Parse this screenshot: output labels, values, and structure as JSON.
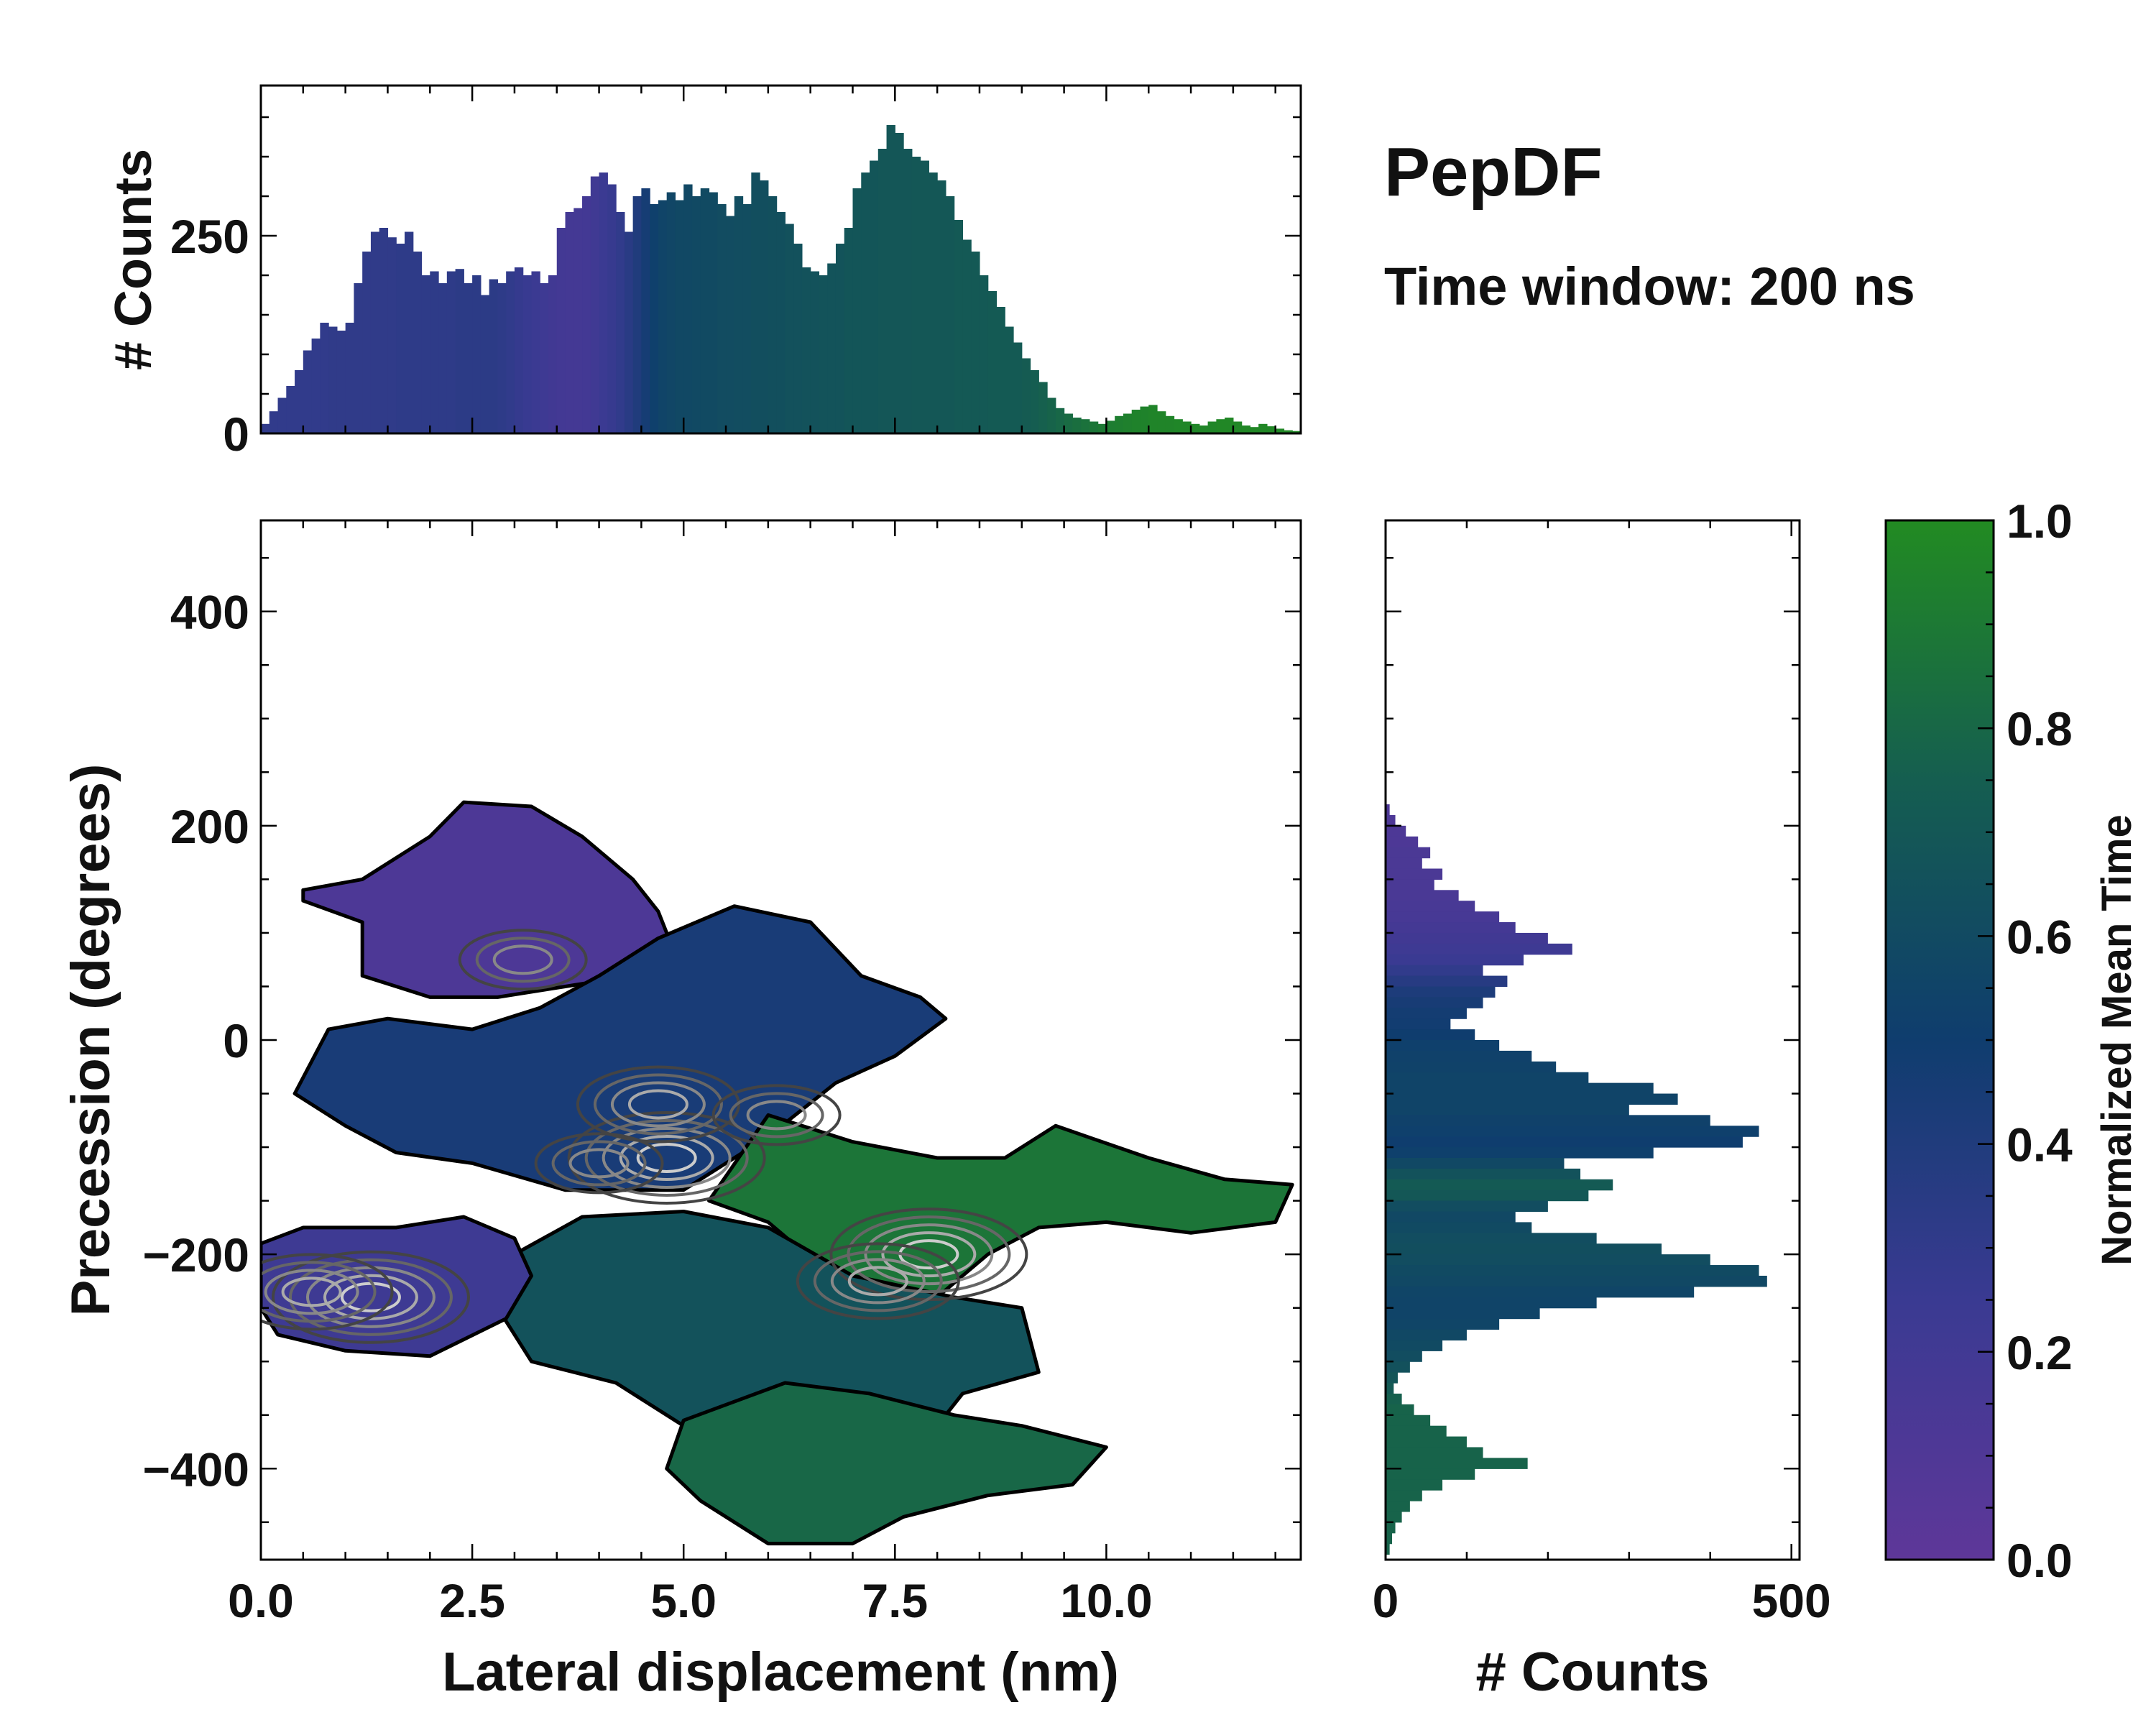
{
  "figure": {
    "title": "PepDF",
    "subtitle": "Time window: 200 ns"
  },
  "colors": {
    "cmap_low": "#5E3799",
    "cmap_q1": "#3A3A92",
    "cmap_mid": "#0F3D6E",
    "cmap_q3": "#155E50",
    "cmap_high": "#228B22",
    "frame": "#000000"
  },
  "chart_data": [
    {
      "id": "top_histogram",
      "type": "bar",
      "title": "",
      "xlabel": "",
      "ylabel": "# Counts",
      "xlim": [
        0,
        12.3
      ],
      "ylim": [
        0,
        440
      ],
      "yticks": [
        0,
        250
      ],
      "bin_width": 0.1,
      "color_by": "normalized_mean_time",
      "x": [
        0.05,
        0.15,
        0.25,
        0.35,
        0.45,
        0.55,
        0.65,
        0.75,
        0.85,
        0.95,
        1.05,
        1.15,
        1.25,
        1.35,
        1.45,
        1.55,
        1.65,
        1.75,
        1.85,
        1.95,
        2.05,
        2.15,
        2.25,
        2.35,
        2.45,
        2.55,
        2.65,
        2.75,
        2.85,
        2.95,
        3.05,
        3.15,
        3.25,
        3.35,
        3.45,
        3.55,
        3.65,
        3.75,
        3.85,
        3.95,
        4.05,
        4.15,
        4.25,
        4.35,
        4.45,
        4.55,
        4.65,
        4.75,
        4.85,
        4.95,
        5.05,
        5.15,
        5.25,
        5.35,
        5.45,
        5.55,
        5.65,
        5.75,
        5.85,
        5.95,
        6.05,
        6.15,
        6.25,
        6.35,
        6.45,
        6.55,
        6.65,
        6.75,
        6.85,
        6.95,
        7.05,
        7.15,
        7.25,
        7.35,
        7.45,
        7.55,
        7.65,
        7.75,
        7.85,
        7.95,
        8.05,
        8.15,
        8.25,
        8.35,
        8.45,
        8.55,
        8.65,
        8.75,
        8.85,
        8.95,
        9.05,
        9.15,
        9.25,
        9.35,
        9.45,
        9.55,
        9.65,
        9.75,
        9.85,
        9.95,
        10.05,
        10.15,
        10.25,
        10.35,
        10.45,
        10.55,
        10.65,
        10.75,
        10.85,
        10.95,
        11.05,
        11.15,
        11.25,
        11.35,
        11.45,
        11.55,
        11.65,
        11.75,
        11.85,
        11.95,
        12.05,
        12.15,
        12.25
      ],
      "values": [
        12,
        28,
        45,
        60,
        80,
        105,
        120,
        140,
        135,
        130,
        140,
        190,
        230,
        255,
        260,
        248,
        240,
        255,
        230,
        200,
        205,
        190,
        205,
        208,
        190,
        200,
        175,
        195,
        190,
        205,
        210,
        200,
        205,
        190,
        200,
        260,
        280,
        285,
        300,
        325,
        330,
        315,
        280,
        255,
        300,
        310,
        290,
        295,
        305,
        295,
        315,
        300,
        310,
        305,
        290,
        275,
        300,
        290,
        330,
        320,
        300,
        280,
        265,
        240,
        210,
        205,
        200,
        215,
        240,
        260,
        310,
        330,
        345,
        360,
        390,
        380,
        360,
        350,
        345,
        330,
        320,
        300,
        270,
        245,
        230,
        200,
        180,
        160,
        135,
        115,
        95,
        80,
        65,
        45,
        32,
        25,
        20,
        18,
        15,
        12,
        16,
        22,
        25,
        30,
        34,
        36,
        28,
        22,
        18,
        15,
        12,
        10,
        15,
        18,
        20,
        15,
        10,
        8,
        12,
        9,
        6,
        4,
        3
      ],
      "colors_t": [
        0.3,
        0.3,
        0.3,
        0.3,
        0.3,
        0.3,
        0.3,
        0.3,
        0.31,
        0.31,
        0.31,
        0.31,
        0.31,
        0.31,
        0.31,
        0.31,
        0.32,
        0.32,
        0.32,
        0.32,
        0.32,
        0.32,
        0.32,
        0.33,
        0.33,
        0.33,
        0.33,
        0.33,
        0.32,
        0.3,
        0.28,
        0.26,
        0.24,
        0.22,
        0.2,
        0.19,
        0.18,
        0.18,
        0.19,
        0.21,
        0.24,
        0.27,
        0.3,
        0.35,
        0.4,
        0.46,
        0.52,
        0.55,
        0.57,
        0.58,
        0.58,
        0.59,
        0.6,
        0.6,
        0.61,
        0.61,
        0.62,
        0.62,
        0.63,
        0.63,
        0.64,
        0.64,
        0.65,
        0.65,
        0.66,
        0.66,
        0.67,
        0.67,
        0.67,
        0.68,
        0.68,
        0.68,
        0.68,
        0.69,
        0.69,
        0.69,
        0.69,
        0.7,
        0.7,
        0.7,
        0.7,
        0.7,
        0.71,
        0.71,
        0.71,
        0.71,
        0.72,
        0.72,
        0.72,
        0.72,
        0.73,
        0.74,
        0.76,
        0.78,
        0.8,
        0.82,
        0.84,
        0.86,
        0.88,
        0.9,
        0.92,
        0.93,
        0.94,
        0.95,
        0.95,
        0.96,
        0.96,
        0.96,
        0.97,
        0.97,
        0.97,
        0.97,
        0.97,
        0.98,
        0.98,
        0.98,
        0.98,
        0.98,
        0.98,
        0.98,
        0.98,
        0.98,
        0.98
      ],
      "xtick_labels": []
    },
    {
      "id": "main_2d_histogram",
      "type": "heatmap",
      "title": "",
      "xlabel": "Lateral displacement (nm)",
      "ylabel": "Precession (degrees)",
      "xlim": [
        0,
        12.3
      ],
      "ylim": [
        -485,
        485
      ],
      "xticks": [
        0.0,
        2.5,
        5.0,
        7.5,
        10.0
      ],
      "xtick_labels": [
        "0.0",
        "2.5",
        "5.0",
        "7.5",
        "10.0"
      ],
      "yticks": [
        400,
        200,
        0,
        -200,
        -400
      ],
      "ytick_labels": [
        "400",
        "200",
        "0",
        "−200",
        "−400"
      ],
      "color_by": "normalized_mean_time",
      "contours": true,
      "regions": [
        {
          "name": "upper-left",
          "t": 0.12,
          "polygon": [
            [
              0.5,
              140
            ],
            [
              1.2,
              150
            ],
            [
              2.0,
              190
            ],
            [
              2.4,
              222
            ],
            [
              3.2,
              218
            ],
            [
              3.8,
              190
            ],
            [
              4.4,
              150
            ],
            [
              4.7,
              120
            ],
            [
              4.9,
              80
            ],
            [
              4.4,
              60
            ],
            [
              3.6,
              50
            ],
            [
              2.8,
              40
            ],
            [
              2.0,
              40
            ],
            [
              1.2,
              60
            ],
            [
              1.2,
              110
            ],
            [
              0.5,
              130
            ]
          ]
        },
        {
          "name": "center-band",
          "t": 0.44,
          "polygon": [
            [
              0.4,
              -50
            ],
            [
              0.8,
              10
            ],
            [
              1.5,
              20
            ],
            [
              2.5,
              10
            ],
            [
              3.3,
              30
            ],
            [
              4.0,
              60
            ],
            [
              4.7,
              95
            ],
            [
              5.6,
              125
            ],
            [
              6.5,
              110
            ],
            [
              7.1,
              60
            ],
            [
              7.8,
              40
            ],
            [
              8.1,
              20
            ],
            [
              7.5,
              -15
            ],
            [
              6.8,
              -40
            ],
            [
              6.0,
              -90
            ],
            [
              5.0,
              -140
            ],
            [
              3.6,
              -140
            ],
            [
              2.5,
              -115
            ],
            [
              1.6,
              -105
            ],
            [
              1.0,
              -80
            ]
          ]
        },
        {
          "name": "right-arm",
          "t": 0.88,
          "polygon": [
            [
              6.0,
              -70
            ],
            [
              7.0,
              -95
            ],
            [
              8.0,
              -110
            ],
            [
              8.8,
              -110
            ],
            [
              9.4,
              -80
            ],
            [
              10.5,
              -110
            ],
            [
              11.4,
              -130
            ],
            [
              12.2,
              -135
            ],
            [
              12.0,
              -170
            ],
            [
              11.0,
              -180
            ],
            [
              10.0,
              -170
            ],
            [
              9.2,
              -175
            ],
            [
              8.6,
              -200
            ],
            [
              8.0,
              -240
            ],
            [
              7.3,
              -250
            ],
            [
              6.6,
              -210
            ],
            [
              6.0,
              -170
            ],
            [
              5.3,
              -150
            ]
          ]
        },
        {
          "name": "center-lower",
          "t": 0.66,
          "polygon": [
            [
              3.0,
              -200
            ],
            [
              3.8,
              -165
            ],
            [
              5.0,
              -160
            ],
            [
              6.0,
              -175
            ],
            [
              7.0,
              -220
            ],
            [
              8.2,
              -240
            ],
            [
              9.0,
              -250
            ],
            [
              9.2,
              -310
            ],
            [
              8.3,
              -330
            ],
            [
              7.8,
              -380
            ],
            [
              6.5,
              -410
            ],
            [
              5.2,
              -370
            ],
            [
              4.2,
              -320
            ],
            [
              3.2,
              -300
            ],
            [
              2.8,
              -250
            ]
          ]
        },
        {
          "name": "lower-left",
          "t": 0.22,
          "polygon": [
            [
              0.0,
              -190
            ],
            [
              0.5,
              -175
            ],
            [
              1.6,
              -175
            ],
            [
              2.4,
              -165
            ],
            [
              3.0,
              -185
            ],
            [
              3.2,
              -220
            ],
            [
              2.9,
              -260
            ],
            [
              2.0,
              -295
            ],
            [
              1.0,
              -290
            ],
            [
              0.2,
              -275
            ],
            [
              0.0,
              -250
            ]
          ]
        },
        {
          "name": "bottom",
          "t": 0.8,
          "polygon": [
            [
              5.0,
              -355
            ],
            [
              6.2,
              -320
            ],
            [
              7.2,
              -330
            ],
            [
              8.2,
              -350
            ],
            [
              9.0,
              -360
            ],
            [
              10.0,
              -380
            ],
            [
              9.6,
              -415
            ],
            [
              8.6,
              -425
            ],
            [
              7.6,
              -445
            ],
            [
              7.0,
              -470
            ],
            [
              6.0,
              -470
            ],
            [
              5.2,
              -430
            ],
            [
              4.8,
              -400
            ]
          ]
        }
      ],
      "density_peaks": [
        {
          "x": 1.3,
          "y": -240,
          "level": 5
        },
        {
          "x": 0.6,
          "y": -235,
          "level": 4
        },
        {
          "x": 4.8,
          "y": -110,
          "level": 5
        },
        {
          "x": 4.7,
          "y": -60,
          "level": 4
        },
        {
          "x": 6.1,
          "y": -70,
          "level": 3
        },
        {
          "x": 7.9,
          "y": -200,
          "level": 5
        },
        {
          "x": 7.3,
          "y": -225,
          "level": 4
        },
        {
          "x": 3.1,
          "y": 75,
          "level": 3
        },
        {
          "x": 4.0,
          "y": -115,
          "level": 3
        }
      ]
    },
    {
      "id": "right_histogram",
      "type": "bar",
      "orientation": "horizontal",
      "title": "",
      "xlabel": "# Counts",
      "ylabel": "",
      "xlim": [
        0,
        510
      ],
      "ylim": [
        -485,
        485
      ],
      "xticks": [
        0,
        500
      ],
      "xtick_labels": [
        "0",
        "500"
      ],
      "bin_width": 10,
      "color_by": "normalized_mean_time",
      "y": [
        215,
        205,
        195,
        185,
        175,
        165,
        155,
        145,
        135,
        125,
        115,
        105,
        95,
        85,
        75,
        65,
        55,
        45,
        35,
        25,
        15,
        5,
        -5,
        -15,
        -25,
        -35,
        -45,
        -55,
        -65,
        -75,
        -85,
        -95,
        -105,
        -115,
        -125,
        -135,
        -145,
        -155,
        -165,
        -175,
        -185,
        -195,
        -205,
        -215,
        -225,
        -235,
        -245,
        -255,
        -265,
        -275,
        -285,
        -295,
        -305,
        -315,
        -325,
        -335,
        -345,
        -355,
        -365,
        -375,
        -385,
        -395,
        -405,
        -415,
        -425,
        -435,
        -445,
        -455,
        -465,
        -475
      ],
      "values": [
        5,
        12,
        25,
        40,
        55,
        45,
        70,
        60,
        90,
        110,
        140,
        160,
        200,
        230,
        170,
        120,
        150,
        135,
        120,
        100,
        80,
        110,
        140,
        180,
        210,
        250,
        330,
        360,
        300,
        400,
        460,
        440,
        330,
        220,
        240,
        280,
        250,
        200,
        160,
        180,
        260,
        340,
        400,
        460,
        470,
        380,
        260,
        190,
        140,
        100,
        70,
        45,
        30,
        15,
        10,
        20,
        35,
        55,
        75,
        100,
        120,
        175,
        110,
        70,
        45,
        30,
        20,
        12,
        8,
        5
      ],
      "colors_t": [
        0.12,
        0.12,
        0.12,
        0.12,
        0.13,
        0.13,
        0.13,
        0.14,
        0.14,
        0.15,
        0.16,
        0.18,
        0.2,
        0.22,
        0.25,
        0.3,
        0.36,
        0.42,
        0.45,
        0.47,
        0.48,
        0.5,
        0.52,
        0.53,
        0.54,
        0.55,
        0.55,
        0.55,
        0.55,
        0.53,
        0.52,
        0.5,
        0.52,
        0.58,
        0.66,
        0.72,
        0.7,
        0.62,
        0.58,
        0.6,
        0.62,
        0.63,
        0.62,
        0.6,
        0.58,
        0.56,
        0.55,
        0.55,
        0.56,
        0.58,
        0.6,
        0.62,
        0.65,
        0.68,
        0.72,
        0.76,
        0.78,
        0.78,
        0.78,
        0.78,
        0.78,
        0.78,
        0.78,
        0.78,
        0.78,
        0.78,
        0.78,
        0.78,
        0.78,
        0.78
      ]
    },
    {
      "id": "colorbar",
      "type": "colorbar",
      "label": "Normalized Mean Time",
      "range": [
        0.0,
        1.0
      ],
      "ticks": [
        0.0,
        0.2,
        0.4,
        0.6,
        0.8,
        1.0
      ],
      "tick_labels": [
        "0.0",
        "0.2",
        "0.4",
        "0.6",
        "0.8",
        "1.0"
      ]
    }
  ]
}
